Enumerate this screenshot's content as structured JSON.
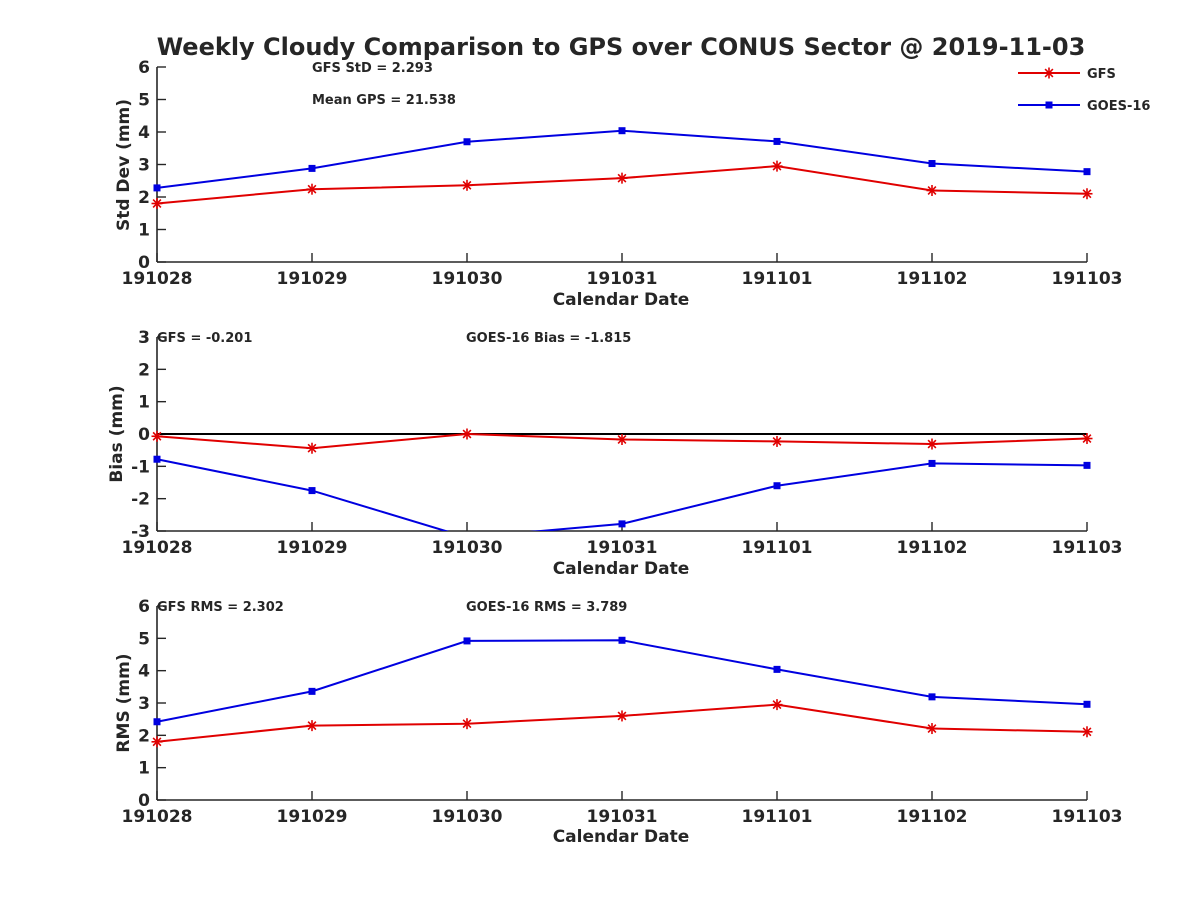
{
  "figure": {
    "title": "Weekly Cloudy Comparison to GPS over CONUS Sector @ 2019-11-03"
  },
  "colors": {
    "gfs": "#e00000",
    "goes": "#0000e0",
    "axis": "#262626",
    "zero_line": "#000000"
  },
  "legend": {
    "placement": "top-right",
    "items": [
      {
        "label": "GFS",
        "color": "#e00000",
        "marker": "asterisk"
      },
      {
        "label": "GOES-16",
        "color": "#0000e0",
        "marker": "square"
      }
    ]
  },
  "chart_data": [
    {
      "type": "line",
      "categories": [
        "191028",
        "191029",
        "191030",
        "191031",
        "191101",
        "191102",
        "191103"
      ],
      "xlabel": "Calendar Date",
      "ylabel": "Std Dev (mm)",
      "ylim": [
        0,
        6
      ],
      "yticks": [
        "0",
        "1",
        "2",
        "3",
        "4",
        "5",
        "6"
      ],
      "grid": false,
      "annotations": [
        "GFS StD = 2.293",
        "Mean GPS = 21.538"
      ],
      "series": [
        {
          "name": "GFS",
          "color": "#e00000",
          "marker": "asterisk",
          "values": [
            1.8,
            2.24,
            2.36,
            2.58,
            2.95,
            2.2,
            2.1
          ]
        },
        {
          "name": "GOES-16",
          "color": "#0000e0",
          "marker": "square",
          "values": [
            2.28,
            2.88,
            3.7,
            4.04,
            3.71,
            3.03,
            2.78
          ]
        }
      ]
    },
    {
      "type": "line",
      "categories": [
        "191028",
        "191029",
        "191030",
        "191031",
        "191101",
        "191102",
        "191103"
      ],
      "xlabel": "Calendar Date",
      "ylabel": "Bias (mm)",
      "ylim": [
        -3,
        3
      ],
      "yticks": [
        "-3",
        "-2",
        "-1",
        "0",
        "1",
        "2",
        "3"
      ],
      "grid": false,
      "reference_line": 0,
      "annotations": [
        "GFS = -0.201",
        "GOES-16 Bias  = -1.815"
      ],
      "series": [
        {
          "name": "GFS",
          "color": "#e00000",
          "marker": "asterisk",
          "values": [
            -0.07,
            -0.44,
            0.0,
            -0.17,
            -0.23,
            -0.31,
            -0.14
          ]
        },
        {
          "name": "GOES-16",
          "color": "#0000e0",
          "marker": "square",
          "values": [
            -0.78,
            -1.75,
            -3.2,
            -2.78,
            -1.6,
            -0.91,
            -0.97
          ]
        }
      ]
    },
    {
      "type": "line",
      "categories": [
        "191028",
        "191029",
        "191030",
        "191031",
        "191101",
        "191102",
        "191103"
      ],
      "xlabel": "Calendar Date",
      "ylabel": "RMS (mm)",
      "ylim": [
        0,
        6
      ],
      "yticks": [
        "0",
        "1",
        "2",
        "3",
        "4",
        "5",
        "6"
      ],
      "grid": false,
      "annotations": [
        "GFS RMS = 2.302",
        "GOES-16 RMS = 3.789"
      ],
      "series": [
        {
          "name": "GFS",
          "color": "#e00000",
          "marker": "asterisk",
          "values": [
            1.8,
            2.3,
            2.36,
            2.6,
            2.95,
            2.21,
            2.11
          ]
        },
        {
          "name": "GOES-16",
          "color": "#0000e0",
          "marker": "square",
          "values": [
            2.42,
            3.36,
            4.92,
            4.94,
            4.04,
            3.19,
            2.96
          ]
        }
      ]
    }
  ]
}
